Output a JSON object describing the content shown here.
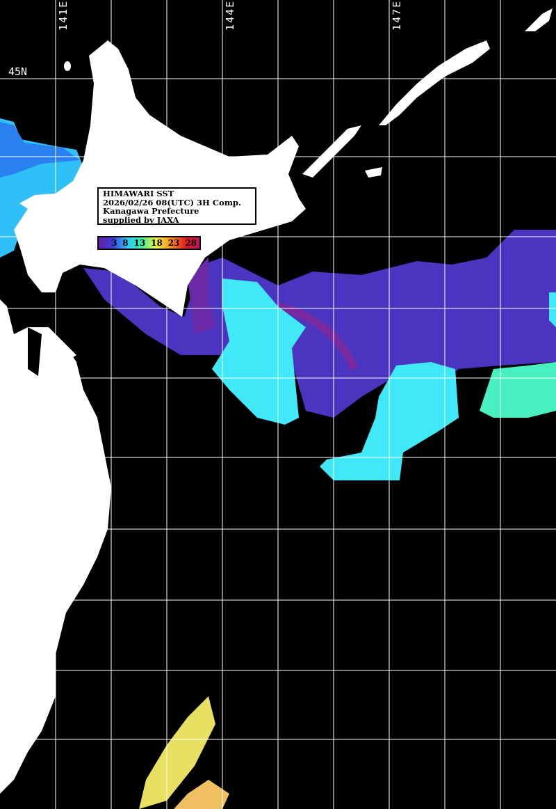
{
  "title": "HIMAWARI SST",
  "datetime": "2026/02/26 08(UTC) 3H Comp.",
  "organization": "Kanagawa Prefecture",
  "credit": "supplied by JAXA",
  "longitude_labels": [
    "141E",
    "144E",
    "147E"
  ],
  "latitude_labels": [
    "45N"
  ],
  "colorbar": {
    "ticks": [
      "3",
      "8",
      "13",
      "18",
      "23",
      "28"
    ],
    "colors": [
      "#6a1fa8",
      "#3a40d8",
      "#30c8f8",
      "#40f0a0",
      "#f0f040",
      "#f89020",
      "#e82020",
      "#c01060"
    ]
  },
  "colors": {
    "land": "#ffffff",
    "no_data": "#000000",
    "grid": "#ffffff"
  }
}
